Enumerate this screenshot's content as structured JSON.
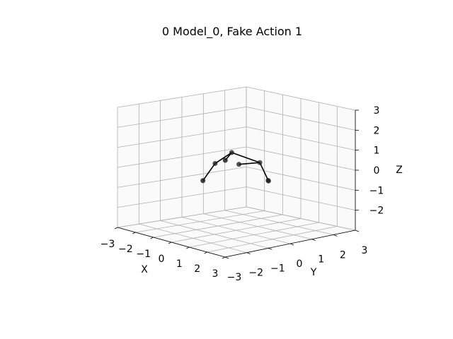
{
  "figure": {
    "title": "0 Model_0, Fake Action 1"
  },
  "chart_data": {
    "type": "scatter",
    "projection": "3d",
    "title": "0 Model_0, Fake Action 1",
    "xlabel": "X",
    "ylabel": "Y",
    "zlabel": "Z",
    "xlim": [
      -3,
      3
    ],
    "ylim": [
      -3,
      3
    ],
    "zlim": [
      -3,
      3
    ],
    "ticks": {
      "x": [
        "−3",
        "−2",
        "−1",
        "0",
        "1",
        "2",
        "3"
      ],
      "y": [
        "−3",
        "−2",
        "−1",
        "0",
        "1",
        "2",
        "3"
      ],
      "z": [
        "−2",
        "−1",
        "0",
        "1",
        "2",
        "3"
      ]
    },
    "grid": true,
    "colors": {
      "points": "#1a1a1a",
      "lines": "#000000",
      "grid": "#b0b0b0"
    },
    "points": [
      {
        "x": 0.0,
        "y": -0.5,
        "z": 0.6
      },
      {
        "x": -0.6,
        "y": 0.3,
        "z": 0.7
      },
      {
        "x": -1.4,
        "y": 0.2,
        "z": 0.0
      },
      {
        "x": -1.0,
        "y": -0.7,
        "z": -0.6
      },
      {
        "x": 0.6,
        "y": 0.6,
        "z": 0.4
      },
      {
        "x": 0.6,
        "y": 1.0,
        "z": -0.6
      },
      {
        "x": -0.2,
        "y": 0.3,
        "z": 0.2
      },
      {
        "x": 1.3,
        "y": 0.4,
        "z": -0.3
      }
    ],
    "segments": [
      [
        0,
        1
      ],
      [
        1,
        2
      ],
      [
        2,
        3
      ],
      [
        1,
        4
      ],
      [
        4,
        5
      ],
      [
        4,
        6
      ]
    ]
  }
}
